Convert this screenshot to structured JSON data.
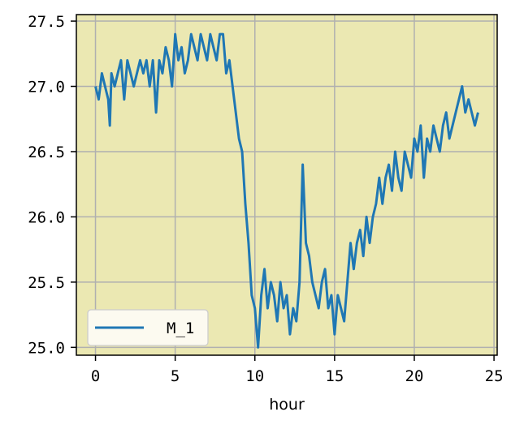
{
  "chart_data": {
    "type": "line",
    "title": "",
    "xlabel": "hour",
    "ylabel": "",
    "xlim": [
      -1.2,
      25.2
    ],
    "ylim": [
      24.94,
      27.55
    ],
    "x_ticks": [
      0,
      5,
      10,
      15,
      20,
      25
    ],
    "y_ticks": [
      25.0,
      25.5,
      26.0,
      26.5,
      27.0,
      27.5
    ],
    "y_tick_labels": [
      "25.0",
      "25.5",
      "26.0",
      "26.5",
      "27.0",
      "27.5"
    ],
    "grid": true,
    "background_color": "#ebe8b2",
    "legend_position": "lower left",
    "series": [
      {
        "name": "M_1",
        "color": "#1f77b4",
        "x": [
          0,
          0.2,
          0.3,
          0.4,
          0.6,
          0.8,
          0.9,
          1.0,
          1.2,
          1.4,
          1.6,
          1.8,
          2.0,
          2.2,
          2.4,
          2.6,
          2.8,
          3.0,
          3.2,
          3.4,
          3.6,
          3.8,
          4.0,
          4.2,
          4.4,
          4.6,
          4.8,
          5.0,
          5.2,
          5.4,
          5.6,
          5.8,
          6.0,
          6.2,
          6.4,
          6.6,
          6.8,
          7.0,
          7.2,
          7.4,
          7.6,
          7.8,
          8.0,
          8.2,
          8.4,
          8.6,
          8.8,
          9.0,
          9.2,
          9.4,
          9.6,
          9.8,
          10.0,
          10.2,
          10.4,
          10.6,
          10.8,
          11.0,
          11.2,
          11.4,
          11.6,
          11.8,
          12.0,
          12.2,
          12.4,
          12.6,
          12.8,
          13.0,
          13.2,
          13.4,
          13.6,
          13.8,
          14.0,
          14.2,
          14.4,
          14.6,
          14.8,
          15.0,
          15.2,
          15.4,
          15.6,
          15.8,
          16.0,
          16.2,
          16.4,
          16.6,
          16.8,
          17.0,
          17.2,
          17.4,
          17.6,
          17.8,
          18.0,
          18.2,
          18.4,
          18.6,
          18.8,
          19.0,
          19.2,
          19.4,
          19.6,
          19.8,
          20.0,
          20.2,
          20.4,
          20.6,
          20.8,
          21.0,
          21.2,
          21.4,
          21.6,
          21.8,
          22.0,
          22.2,
          22.4,
          22.6,
          22.8,
          23.0,
          23.2,
          23.4,
          23.6,
          23.8,
          24.0
        ],
        "values": [
          27.0,
          26.9,
          27.0,
          27.1,
          27.0,
          26.9,
          26.7,
          27.1,
          27.0,
          27.1,
          27.2,
          26.9,
          27.2,
          27.1,
          27.0,
          27.1,
          27.2,
          27.1,
          27.2,
          27.0,
          27.2,
          26.8,
          27.2,
          27.1,
          27.3,
          27.2,
          27.0,
          27.4,
          27.2,
          27.3,
          27.1,
          27.2,
          27.4,
          27.3,
          27.2,
          27.4,
          27.3,
          27.2,
          27.4,
          27.3,
          27.2,
          27.4,
          27.4,
          27.1,
          27.2,
          27.0,
          26.8,
          26.6,
          26.5,
          26.1,
          25.8,
          25.4,
          25.3,
          25.0,
          25.4,
          25.6,
          25.3,
          25.5,
          25.4,
          25.2,
          25.5,
          25.3,
          25.4,
          25.1,
          25.3,
          25.2,
          25.5,
          26.4,
          25.8,
          25.7,
          25.5,
          25.4,
          25.3,
          25.5,
          25.6,
          25.3,
          25.4,
          25.1,
          25.4,
          25.3,
          25.2,
          25.5,
          25.8,
          25.6,
          25.8,
          25.9,
          25.7,
          26.0,
          25.8,
          26.0,
          26.1,
          26.3,
          26.1,
          26.3,
          26.4,
          26.2,
          26.5,
          26.3,
          26.2,
          26.5,
          26.4,
          26.3,
          26.6,
          26.5,
          26.7,
          26.3,
          26.6,
          26.5,
          26.7,
          26.6,
          26.5,
          26.7,
          26.8,
          26.6,
          26.7,
          26.8,
          26.9,
          27.0,
          26.8,
          26.9,
          26.8,
          26.7,
          26.8
        ]
      }
    ]
  }
}
